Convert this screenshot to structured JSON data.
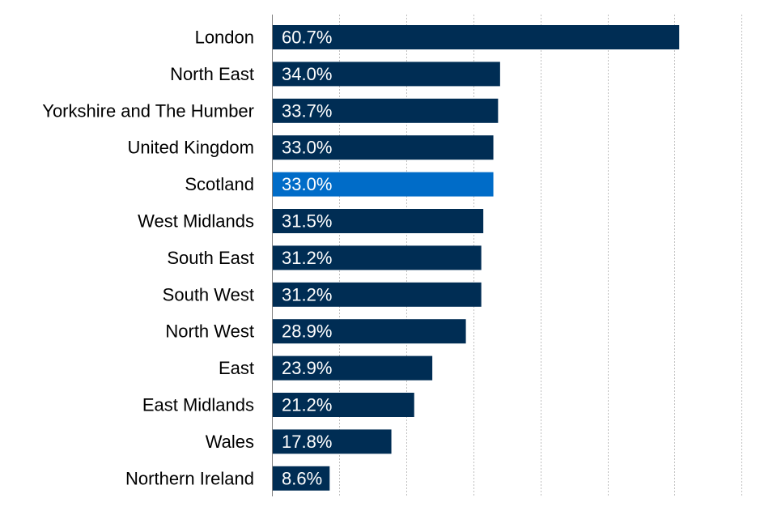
{
  "chart_data": {
    "type": "bar",
    "orientation": "horizontal",
    "categories": [
      "London",
      "North East",
      "Yorkshire and The Humber",
      "United Kingdom",
      "Scotland",
      "West Midlands",
      "South East",
      "South West",
      "North West",
      "East",
      "East Midlands",
      "Wales",
      "Northern Ireland"
    ],
    "values": [
      60.7,
      34.0,
      33.7,
      33.0,
      33.0,
      31.5,
      31.2,
      31.2,
      28.9,
      23.9,
      21.2,
      17.8,
      8.6
    ],
    "data_labels": [
      "60.7%",
      "34.0%",
      "33.7%",
      "33.0%",
      "33.0%",
      "31.5%",
      "31.2%",
      "31.2%",
      "28.9%",
      "23.9%",
      "21.2%",
      "17.8%",
      "8.6%"
    ],
    "highlight_category": "Scotland",
    "xlim": [
      0,
      70
    ],
    "x_gridline_step": 10,
    "grid": true,
    "title": "",
    "xlabel": "",
    "ylabel": "",
    "colors": {
      "bar": "#002d54",
      "highlight": "#006cc8",
      "label_text": "#ffffff",
      "gridline": "#bfbfbf"
    }
  }
}
